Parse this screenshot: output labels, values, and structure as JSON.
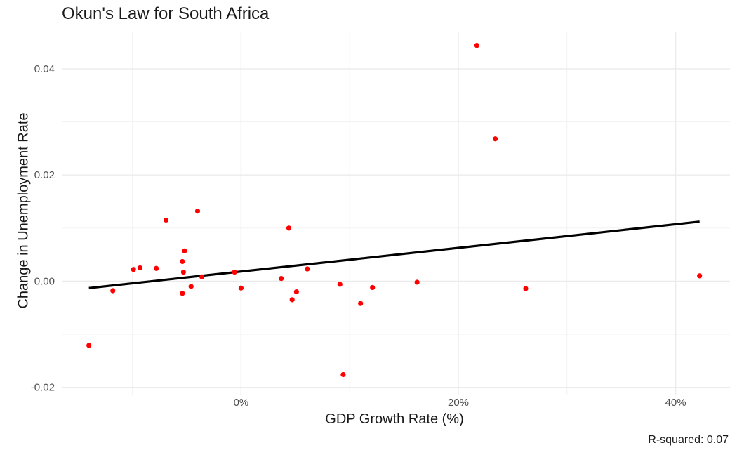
{
  "chart_data": {
    "type": "scatter",
    "title": "Okun's Law for South Africa",
    "xlabel": "GDP Growth Rate (%)",
    "ylabel": "Change in Unemployment Rate",
    "caption": "R-squared: 0.07",
    "xlim": [
      -0.165,
      0.45
    ],
    "ylim": [
      -0.0215,
      0.047
    ],
    "x_ticks": [
      0.0,
      0.2,
      0.4
    ],
    "x_tick_labels": [
      "0%",
      "20%",
      "40%"
    ],
    "y_ticks": [
      -0.02,
      0.0,
      0.02,
      0.04
    ],
    "y_tick_labels": [
      "-0.02",
      "0.00",
      "0.02",
      "0.04"
    ],
    "grid": true,
    "points": {
      "color": "#ff0000",
      "x": [
        -0.14,
        -0.118,
        -0.099,
        -0.093,
        -0.078,
        -0.069,
        -0.054,
        -0.054,
        -0.053,
        -0.052,
        -0.046,
        -0.04,
        -0.036,
        -0.006,
        0.0,
        0.037,
        0.044,
        0.047,
        0.051,
        0.061,
        0.091,
        0.094,
        0.11,
        0.121,
        0.162,
        0.217,
        0.234,
        0.262,
        0.422
      ],
      "y": [
        -0.0121,
        -0.0018,
        0.0022,
        0.0025,
        0.0024,
        0.0115,
        0.0037,
        -0.0023,
        0.0017,
        0.0057,
        -0.001,
        0.0132,
        0.0008,
        0.0017,
        -0.0013,
        0.0005,
        0.01,
        -0.0035,
        -0.002,
        0.0023,
        -0.0006,
        -0.0176,
        -0.0042,
        -0.0012,
        -0.0002,
        0.0444,
        0.0268,
        -0.0014,
        0.001
      ]
    },
    "fit_line": {
      "color": "#000000",
      "x": [
        -0.14,
        0.422
      ],
      "y": [
        -0.0013,
        0.0112
      ]
    }
  }
}
